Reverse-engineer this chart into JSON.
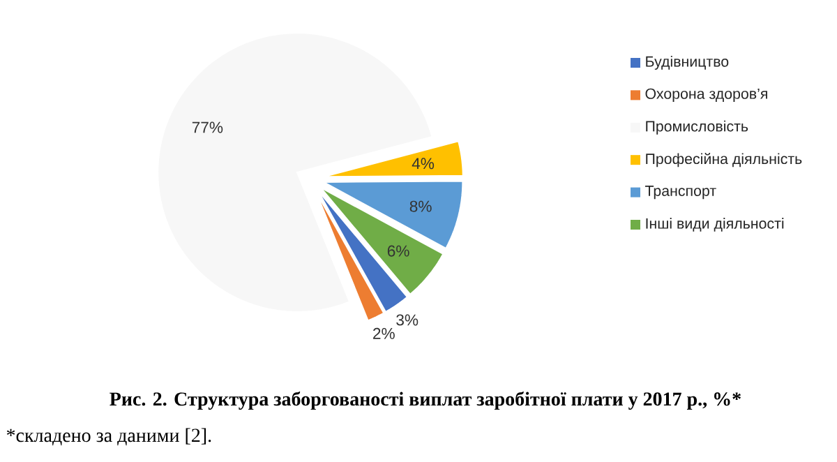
{
  "chart_data": {
    "type": "pie",
    "title": "Рис. 2. Структура заборгованості виплат заробітної плати у 2017 р., %*",
    "annotations": [
      "*складено за даними [2]."
    ],
    "categories": [
      "Будівництво",
      "Охорона здоров’я",
      "Промисловість",
      "Професійна діяльність",
      "Транспорт",
      "Інші види діяльності"
    ],
    "values": [
      3,
      2,
      77,
      4,
      8,
      6
    ],
    "value_labels": [
      "3%",
      "2%",
      "77%",
      "4%",
      "8%",
      "6%"
    ],
    "colors": [
      "#4472c4",
      "#ed7d31",
      "#f7f7f7",
      "#ffc000",
      "#5b9bd5",
      "#70ad47"
    ],
    "legend": "right"
  }
}
